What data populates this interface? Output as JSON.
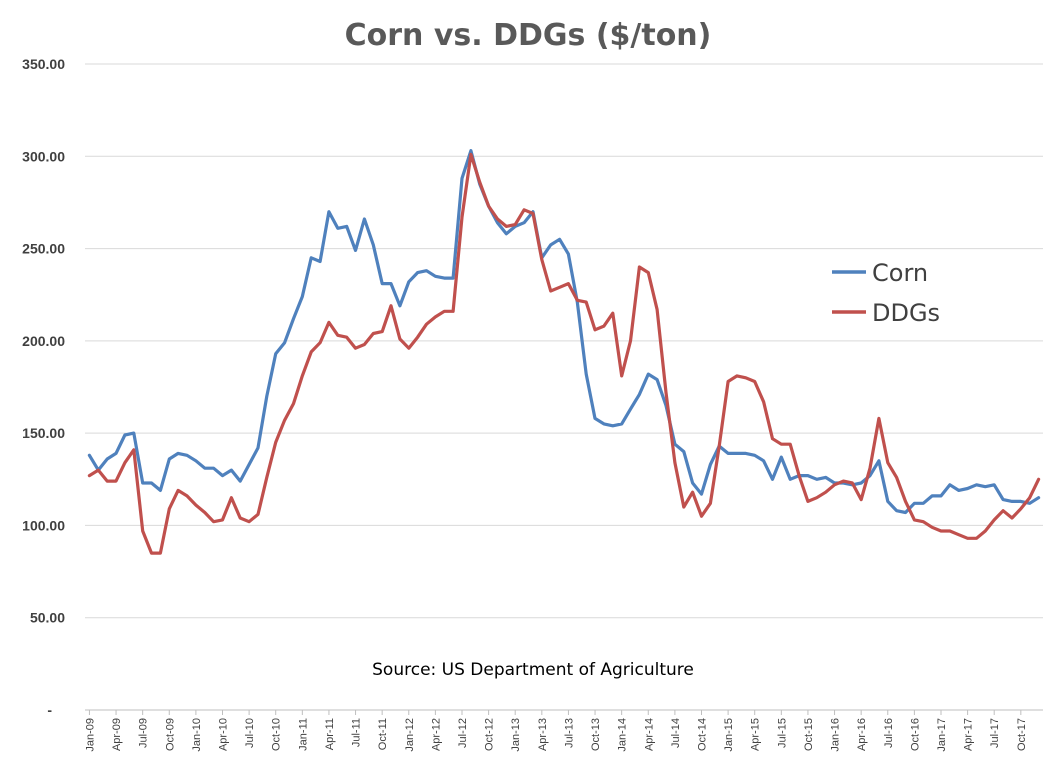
{
  "chart_data": {
    "type": "line",
    "title": "Corn vs. DDGs ($/ton)",
    "subtitle": "",
    "xlabel": "",
    "ylabel": "",
    "annotation": "Source: US Department of Agriculture",
    "ylim": [
      0,
      350
    ],
    "yticks": [
      "-",
      "50.00",
      "100.00",
      "150.00",
      "200.00",
      "250.00",
      "300.00",
      "350.00"
    ],
    "ytick_values": [
      0,
      50,
      100,
      150,
      200,
      250,
      300,
      350
    ],
    "grid": true,
    "legend_position": "right",
    "x": [
      "Jan-09",
      "Feb-09",
      "Mar-09",
      "Apr-09",
      "May-09",
      "Jun-09",
      "Jul-09",
      "Aug-09",
      "Sep-09",
      "Oct-09",
      "Nov-09",
      "Dec-09",
      "Jan-10",
      "Feb-10",
      "Mar-10",
      "Apr-10",
      "May-10",
      "Jun-10",
      "Jul-10",
      "Aug-10",
      "Sep-10",
      "Oct-10",
      "Nov-10",
      "Dec-10",
      "Jan-11",
      "Feb-11",
      "Mar-11",
      "Apr-11",
      "May-11",
      "Jun-11",
      "Jul-11",
      "Aug-11",
      "Sep-11",
      "Oct-11",
      "Nov-11",
      "Dec-11",
      "Jan-12",
      "Feb-12",
      "Mar-12",
      "Apr-12",
      "May-12",
      "Jun-12",
      "Jul-12",
      "Aug-12",
      "Sep-12",
      "Oct-12",
      "Nov-12",
      "Dec-12",
      "Jan-13",
      "Feb-13",
      "Mar-13",
      "Apr-13",
      "May-13",
      "Jun-13",
      "Jul-13",
      "Aug-13",
      "Sep-13",
      "Oct-13",
      "Nov-13",
      "Dec-13",
      "Jan-14",
      "Feb-14",
      "Mar-14",
      "Apr-14",
      "May-14",
      "Jun-14",
      "Jul-14",
      "Aug-14",
      "Sep-14",
      "Oct-14",
      "Nov-14",
      "Dec-14",
      "Jan-15",
      "Feb-15",
      "Mar-15",
      "Apr-15",
      "May-15",
      "Jun-15",
      "Jul-15",
      "Aug-15",
      "Sep-15",
      "Oct-15",
      "Nov-15",
      "Dec-15",
      "Jan-16",
      "Feb-16",
      "Mar-16",
      "Apr-16",
      "May-16",
      "Jun-16",
      "Jul-16",
      "Aug-16",
      "Sep-16",
      "Oct-16",
      "Nov-16",
      "Dec-16",
      "Jan-17",
      "Feb-17",
      "Mar-17",
      "Apr-17",
      "May-17",
      "Jun-17",
      "Jul-17",
      "Aug-17",
      "Sep-17",
      "Oct-17",
      "Nov-17",
      "Dec-17"
    ],
    "x_tick_labels": [
      "Jan-09",
      "Apr-09",
      "Jul-09",
      "Oct-09",
      "Jan-10",
      "Apr-10",
      "Jul-10",
      "Oct-10",
      "Jan-11",
      "Apr-11",
      "Jul-11",
      "Oct-11",
      "Jan-12",
      "Apr-12",
      "Jul-12",
      "Oct-12",
      "Jan-13",
      "Apr-13",
      "Jul-13",
      "Oct-13",
      "Jan-14",
      "Apr-14",
      "Jul-14",
      "Oct-14",
      "Jan-15",
      "Apr-15",
      "Jul-15",
      "Oct-15",
      "Jan-16",
      "Apr-16",
      "Jul-16",
      "Oct-16",
      "Jan-17",
      "Apr-17",
      "Jul-17",
      "Oct-17"
    ],
    "series": [
      {
        "name": "Corn",
        "color": "#4f81bd",
        "values": [
          138,
          130,
          136,
          139,
          149,
          150,
          123,
          123,
          119,
          136,
          139,
          138,
          135,
          131,
          131,
          127,
          130,
          124,
          133,
          142,
          170,
          193,
          199,
          212,
          224,
          245,
          243,
          270,
          261,
          262,
          249,
          266,
          252,
          231,
          231,
          219,
          232,
          237,
          238,
          235,
          234,
          234,
          288,
          303,
          285,
          273,
          264,
          258,
          262,
          264,
          270,
          245,
          252,
          255,
          247,
          221,
          182,
          158,
          155,
          154,
          155,
          163,
          171,
          182,
          179,
          165,
          144,
          140,
          123,
          117,
          133,
          143,
          139,
          139,
          139,
          138,
          135,
          125,
          137,
          125,
          127,
          127,
          125,
          126,
          123,
          123,
          122,
          123,
          127,
          135,
          113,
          108,
          107,
          112,
          112,
          116,
          116,
          122,
          119,
          120,
          122,
          121,
          122,
          114,
          113,
          113,
          112,
          115
        ]
      },
      {
        "name": "DDGs",
        "color": "#c0504d",
        "values": [
          127,
          130,
          124,
          124,
          134,
          141,
          97,
          85,
          85,
          109,
          119,
          116,
          111,
          107,
          102,
          103,
          115,
          104,
          102,
          106,
          126,
          145,
          157,
          166,
          181,
          194,
          199,
          210,
          203,
          202,
          196,
          198,
          204,
          205,
          219,
          201,
          196,
          202,
          209,
          213,
          216,
          216,
          267,
          301,
          286,
          273,
          266,
          262,
          263,
          271,
          269,
          244,
          227,
          229,
          231,
          222,
          221,
          206,
          208,
          215,
          181,
          200,
          240,
          237,
          217,
          172,
          134,
          110,
          118,
          105,
          112,
          143,
          178,
          181,
          180,
          178,
          167,
          147,
          144,
          144,
          127,
          113,
          115,
          118,
          122,
          124,
          123,
          114,
          131,
          158,
          134,
          126,
          113,
          103,
          102,
          99,
          97,
          97,
          95,
          93,
          93,
          97,
          103,
          108,
          104,
          109,
          115,
          125
        ]
      }
    ]
  }
}
